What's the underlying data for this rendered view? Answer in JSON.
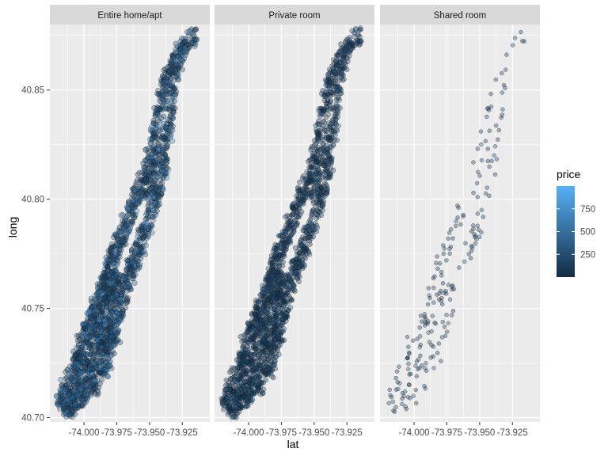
{
  "chart_data": {
    "type": "scatter",
    "xlabel": "lat",
    "ylabel": "long",
    "xlim": [
      -74.026,
      -73.904
    ],
    "ylim": [
      40.698,
      40.88
    ],
    "x_ticks": [
      -74.0,
      -73.975,
      -73.95,
      -73.925
    ],
    "x_tick_labels": [
      "-74.000",
      "-73.975",
      "-73.950",
      "-73.925"
    ],
    "y_ticks": [
      40.7,
      40.75,
      40.8,
      40.85
    ],
    "y_tick_labels": [
      "40.70",
      "40.75",
      "40.80",
      "40.85"
    ],
    "grid": true,
    "facets": [
      {
        "label": "Entire home/apt",
        "density": 1.0,
        "ptsize": 3.3
      },
      {
        "label": "Private room",
        "density": 0.95,
        "ptsize": 3.1
      },
      {
        "label": "Shared room",
        "density": 0.09,
        "ptsize": 2.5
      }
    ],
    "legend": {
      "title": "price",
      "placement": "right",
      "range": [
        0,
        1000
      ],
      "ticks": [
        250,
        500,
        750
      ],
      "tick_labels": [
        "250",
        "500",
        "750"
      ],
      "low_color": "#132B43",
      "high_color": "#56B1F7"
    },
    "panel_background": "#EBEBEB",
    "strip_background": "#D9D9D9",
    "point_opacity": 0.35
  }
}
